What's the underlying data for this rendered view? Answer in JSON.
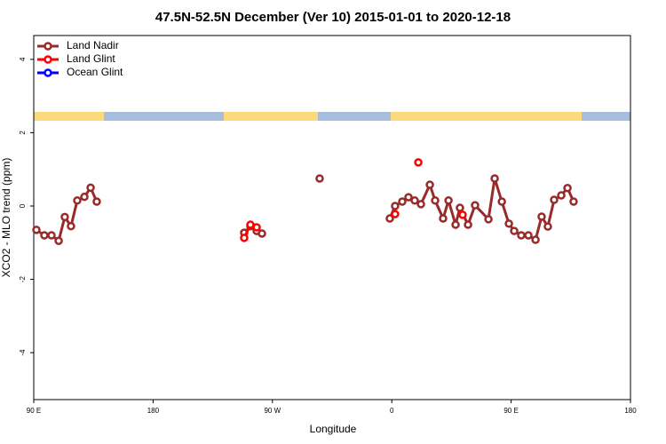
{
  "chart_data": {
    "type": "line",
    "title": "47.5N-52.5N December (Ver 10)   2015-01-01 to 2020-12-18",
    "x_label": "Longitude",
    "y_label": "XCO2 - MLO trend (ppm)",
    "xlim": [
      90,
      540
    ],
    "ylim": [
      -5.28,
      4.65
    ],
    "xticks": [
      {
        "value": 90,
        "label": "90 E"
      },
      180,
      {
        "value": 270,
        "label": "90 W"
      },
      {
        "value": 360,
        "label": "0"
      },
      {
        "value": 450,
        "label": "90 E"
      },
      {
        "value": 540,
        "label": "180"
      }
    ],
    "yticks": [
      -4,
      -2,
      0,
      2,
      4
    ],
    "legend": "top-left",
    "series": [
      {
        "name": "Land Nadir",
        "color": "#992a2a",
        "x": [
          92.0,
          98.0,
          103.4,
          108.8,
          113.4,
          118.1,
          122.8,
          128.2,
          132.9,
          137.5,
          248.7,
          253.4,
          258.1,
          262.1,
          305.6,
          358.5,
          362.5,
          367.9,
          372.6,
          377.3,
          382.0,
          388.7,
          392.7,
          398.7,
          402.8,
          408.1,
          411.4,
          417.5,
          422.8,
          432.9,
          437.6,
          443.0,
          448.3,
          452.3,
          457.6,
          463.0,
          468.4,
          473.0,
          477.7,
          482.4,
          487.8,
          492.5,
          497.1
        ],
        "values": [
          -0.65,
          -0.8,
          -0.8,
          -0.95,
          -0.3,
          -0.55,
          0.15,
          0.25,
          0.5,
          0.12,
          -0.73,
          -0.55,
          -0.68,
          -0.75,
          0.75,
          -0.34,
          0.0,
          0.12,
          0.24,
          0.15,
          0.05,
          0.58,
          0.15,
          -0.34,
          0.15,
          -0.51,
          -0.05,
          -0.51,
          0.02,
          -0.36,
          0.75,
          0.12,
          -0.48,
          -0.68,
          -0.8,
          -0.8,
          -0.92,
          -0.29,
          -0.56,
          0.17,
          0.29,
          0.49,
          0.12
        ]
      },
      {
        "name": "Land Glint",
        "color": "#ff0000",
        "x": [
          248.7,
          253.4,
          258.1,
          362.5,
          380.0,
          413.4
        ],
        "values": [
          -0.87,
          -0.51,
          -0.58,
          -0.22,
          1.19,
          -0.24
        ]
      },
      {
        "name": "Ocean Glint",
        "color": "#0000ff",
        "x": [],
        "values": []
      }
    ]
  }
}
